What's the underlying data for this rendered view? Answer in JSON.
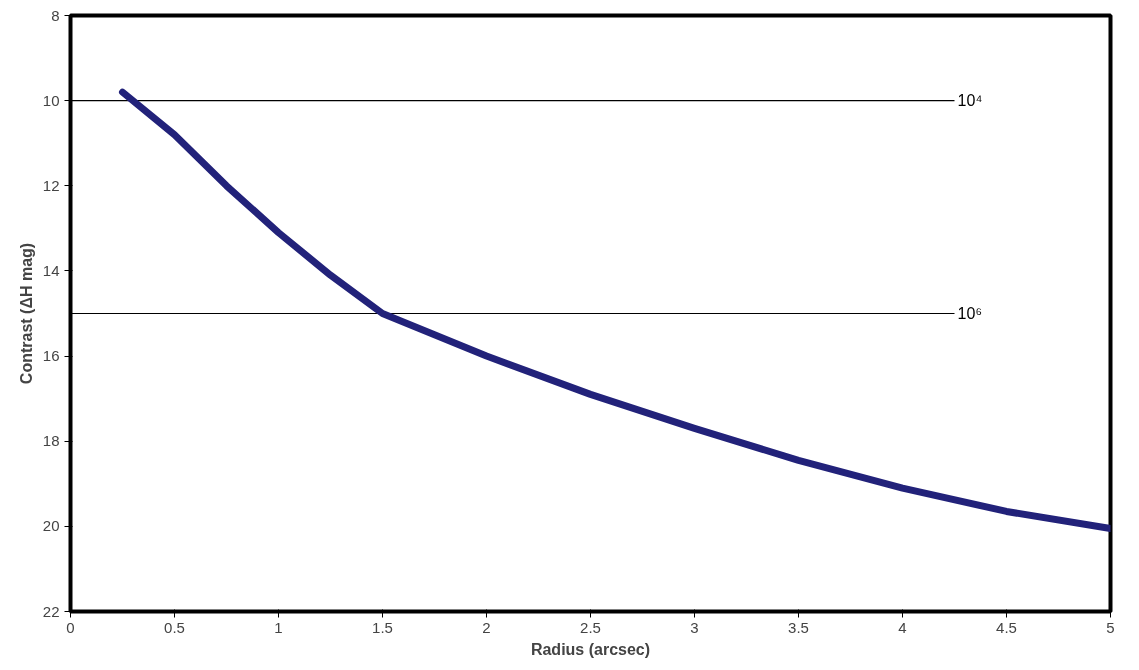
{
  "chart_data": {
    "type": "line",
    "xlabel": "Radius (arcsec)",
    "ylabel": "Contrast (ΔH mag)",
    "xlim": [
      0,
      5
    ],
    "xticks": [
      0,
      0.5,
      1,
      1.5,
      2,
      2.5,
      3,
      3.5,
      4,
      4.5,
      5
    ],
    "ylim": [
      22,
      8
    ],
    "yticks": [
      8,
      10,
      12,
      14,
      16,
      18,
      20,
      22
    ],
    "grid": false,
    "marker": "none",
    "line_style": "solid",
    "x": [
      0.25,
      0.5,
      0.75,
      1,
      1.25,
      1.5,
      1.75,
      2,
      2.5,
      3,
      3.5,
      4,
      4.5,
      5
    ],
    "series": [
      {
        "color": "#22227a",
        "values": [
          9.8,
          10.8,
          12.0,
          13.1,
          14.1,
          15.0,
          15.5,
          16.0,
          16.9,
          17.7,
          18.45,
          19.1,
          19.65,
          20.05
        ]
      }
    ],
    "ref_lines": [
      {
        "axis": "y",
        "value": 10,
        "label": "10⁴",
        "color": "#000000"
      },
      {
        "axis": "y",
        "value": 15,
        "label": "10⁶",
        "color": "#000000"
      }
    ]
  }
}
